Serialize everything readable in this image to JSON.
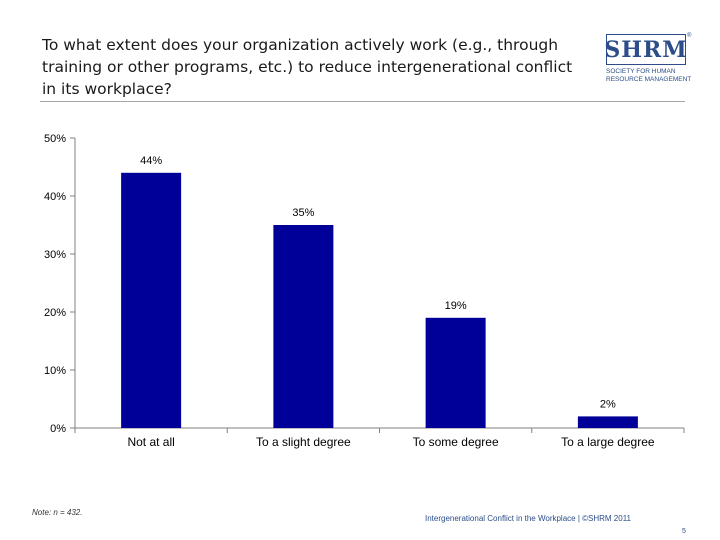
{
  "header": {
    "title": "To what extent does your organization actively work (e.g., through training or other programs, etc.) to reduce intergenerational conflict in its workplace?"
  },
  "logo": {
    "word": "SHRM",
    "reg": "®",
    "tag_lines": [
      "SOCIETY FOR HUMAN",
      "RESOURCE MANAGEMENT"
    ]
  },
  "chart_data": {
    "type": "bar",
    "title": "To what extent does your organization actively work (e.g., through training or other programs, etc.) to reduce intergenerational conflict in its workplace?",
    "categories": [
      "Not at all",
      "To a slight degree",
      "To some degree",
      "To a large degree"
    ],
    "values": [
      44,
      35,
      19,
      2
    ],
    "data_labels": [
      "44%",
      "35%",
      "19%",
      "2%"
    ],
    "yticks": [
      0,
      10,
      20,
      30,
      40,
      50
    ],
    "ytick_labels": [
      "0%",
      "10%",
      "20%",
      "30%",
      "40%",
      "50%"
    ],
    "ylim": [
      0,
      50
    ],
    "xlabel": "",
    "ylabel": "",
    "bar_color": "#000099",
    "grid": false,
    "legend": "none"
  },
  "footer": {
    "note": "Note: n = 432.",
    "source": "Intergenerational Conflict in the Workplace | ©SHRM 2011",
    "page_number": "5"
  }
}
